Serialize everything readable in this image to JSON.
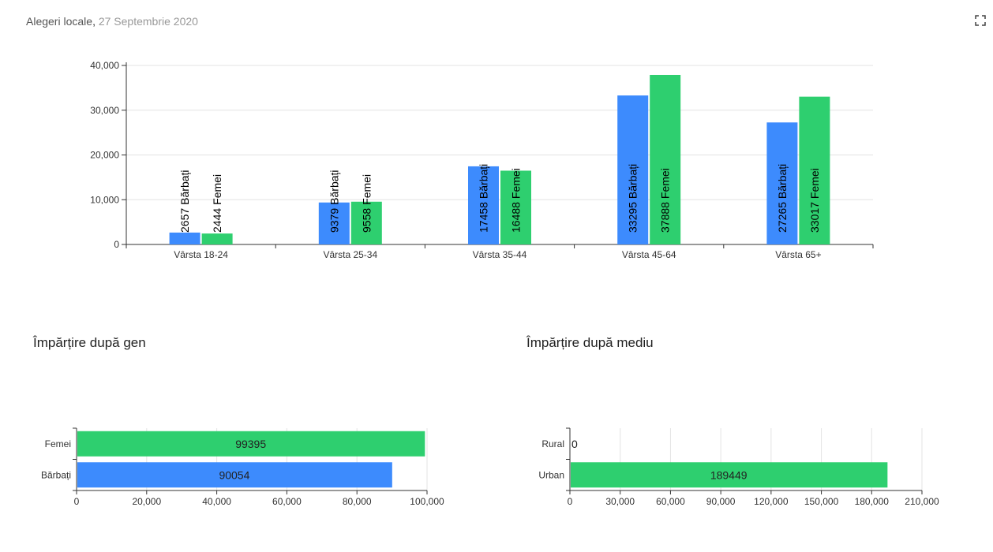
{
  "header": {
    "title": "Alegeri locale",
    "separator": ", ",
    "date": "27 Septembrie 2020"
  },
  "icons": {
    "expand": "expand-icon"
  },
  "colors": {
    "male": "#3d8bfd",
    "female": "#2ecf6f",
    "grid": "#e3e3e3",
    "axis": "#333333"
  },
  "gender_section": {
    "title": "Împărțire după gen"
  },
  "environment_section": {
    "title": "Împărțire după mediu"
  },
  "chart_data": [
    {
      "type": "bar",
      "categories": [
        "Vârsta 18-24",
        "Vârsta 25-34",
        "Vârsta 35-44",
        "Vârsta 45-64",
        "Vârsta 65+"
      ],
      "series": [
        {
          "name": "Bărbați",
          "values": [
            2657,
            9379,
            17458,
            33295,
            27265
          ]
        },
        {
          "name": "Femei",
          "values": [
            2444,
            9558,
            16488,
            37888,
            33017
          ]
        }
      ],
      "ylim": [
        0,
        40000
      ],
      "yticks": [
        0,
        10000,
        20000,
        30000,
        40000
      ],
      "ytick_labels": [
        "0",
        "10,000",
        "20,000",
        "30,000",
        "40,000"
      ],
      "grid": true
    },
    {
      "type": "bar",
      "orientation": "horizontal",
      "categories": [
        "Femei",
        "Bărbați"
      ],
      "values": [
        99395,
        90054
      ],
      "xlim": [
        0,
        100000
      ],
      "xticks": [
        0,
        20000,
        40000,
        60000,
        80000,
        100000
      ],
      "xtick_labels": [
        "0",
        "20,000",
        "40,000",
        "60,000",
        "80,000",
        "100,000"
      ],
      "grid": true
    },
    {
      "type": "bar",
      "orientation": "horizontal",
      "categories": [
        "Rural",
        "Urban"
      ],
      "values": [
        0,
        189449
      ],
      "xlim": [
        0,
        210000
      ],
      "xticks": [
        0,
        30000,
        60000,
        90000,
        120000,
        150000,
        180000,
        210000
      ],
      "xtick_labels": [
        "0",
        "30,000",
        "60,000",
        "90,000",
        "120,000",
        "150,000",
        "180,000",
        "210,000"
      ],
      "grid": true
    }
  ]
}
